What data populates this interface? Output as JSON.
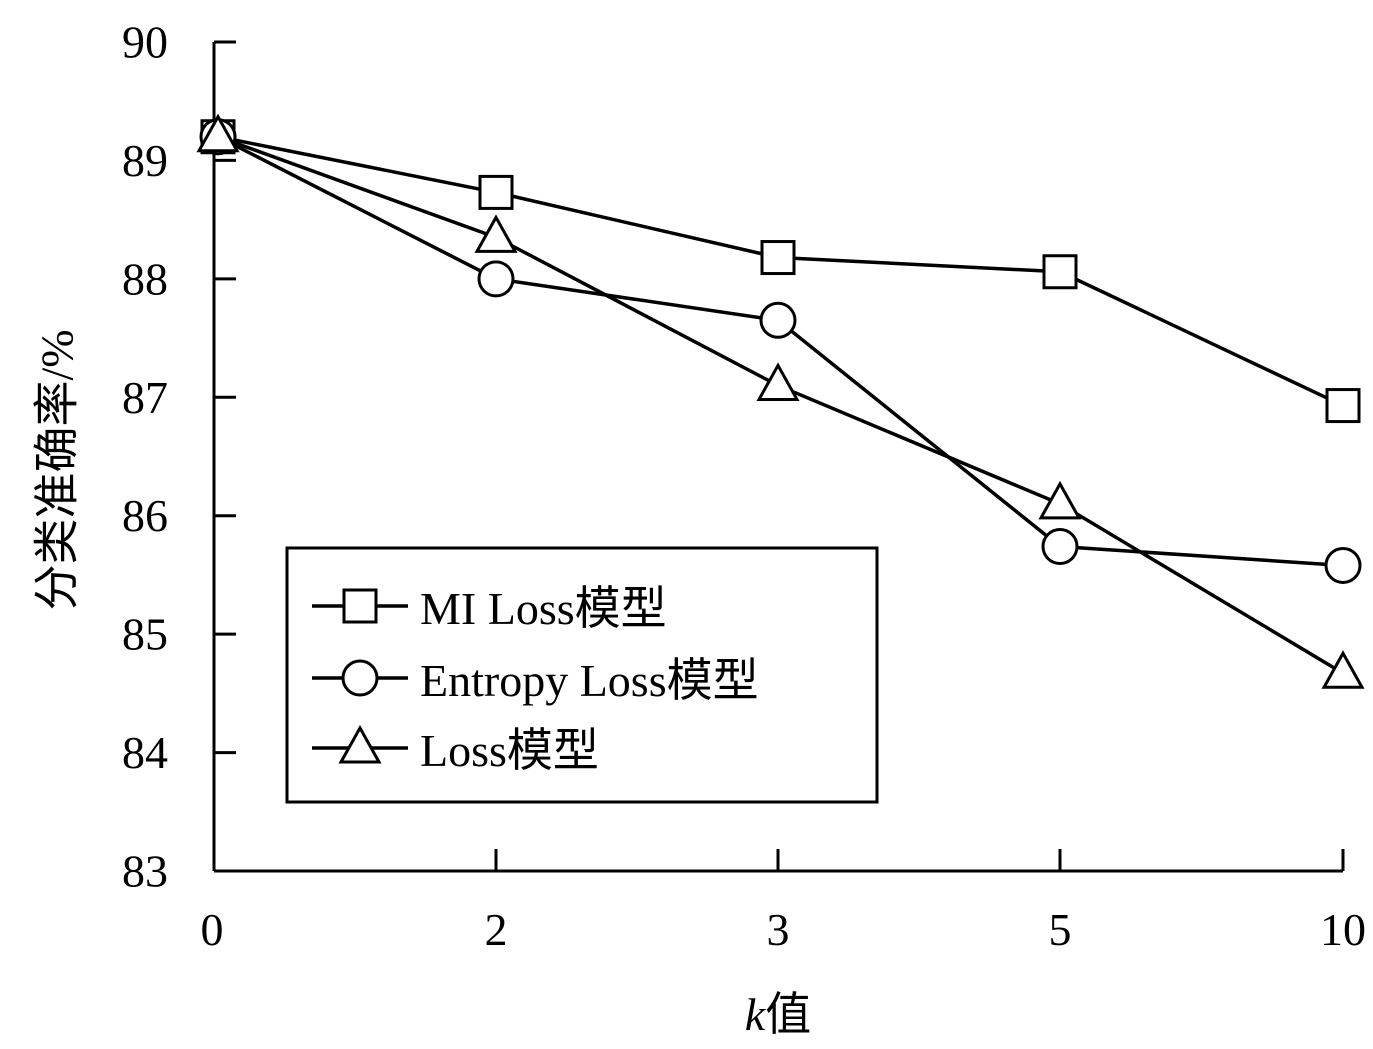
{
  "chart_data": {
    "type": "line",
    "categories": [
      "0",
      "2",
      "3",
      "5",
      "10"
    ],
    "ylabel": "分类准确率/%",
    "xlabel_var": "k",
    "xlabel_suffix": "值",
    "ylim": [
      83,
      90
    ],
    "yticks": [
      83,
      84,
      85,
      86,
      87,
      88,
      89,
      90
    ],
    "grid": false,
    "legend_position": "lower-left",
    "series": [
      {
        "name": "MI Loss模型",
        "marker": "square",
        "values": [
          89.2,
          88.73,
          88.18,
          88.06,
          86.93
        ]
      },
      {
        "name": "Entropy Loss模型",
        "marker": "circle",
        "values": [
          89.2,
          88.0,
          87.65,
          85.74,
          85.58
        ]
      },
      {
        "name": "Loss模型",
        "marker": "triangle",
        "values": [
          89.2,
          88.35,
          87.1,
          86.1,
          84.67
        ]
      }
    ],
    "colors": {
      "line": "#000000",
      "marker_fill": "#ffffff"
    }
  }
}
